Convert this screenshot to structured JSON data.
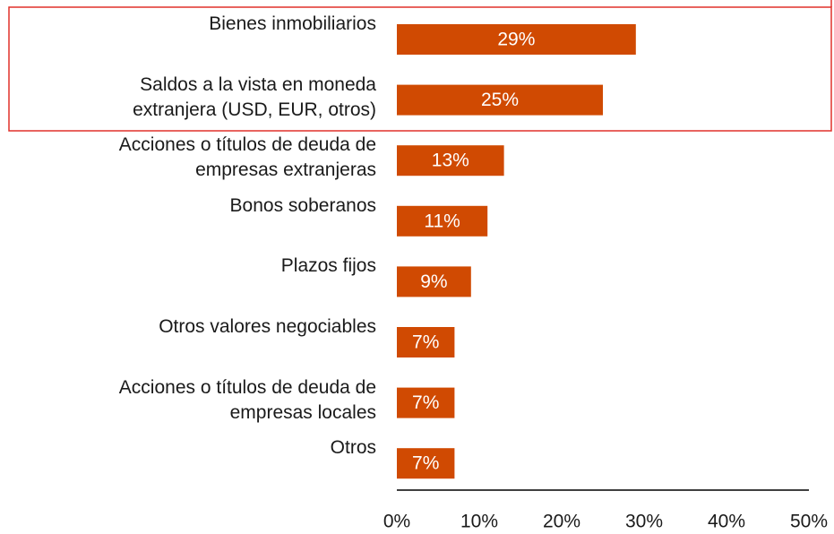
{
  "chart_data": {
    "type": "bar",
    "orientation": "horizontal",
    "categories": [
      "Bienes inmobiliarios",
      "Saldos a la vista en moneda\nextranjera (USD, EUR, otros)",
      "Acciones o títulos de deuda de\nempresas extranjeras",
      "Bonos soberanos",
      "Plazos fijos",
      "Otros valores negociables",
      "Acciones o títulos de deuda de\nempresas locales",
      "Otros"
    ],
    "values": [
      29,
      25,
      13,
      11,
      9,
      7,
      7,
      7
    ],
    "value_labels": [
      "29%",
      "25%",
      "13%",
      "11%",
      "9%",
      "7%",
      "7%",
      "7%"
    ],
    "color": "#d04a02",
    "xlim": [
      0,
      50
    ],
    "xticks": [
      {
        "value": 0,
        "label": "0%"
      },
      {
        "value": 10,
        "label": "10%"
      },
      {
        "value": 20,
        "label": "20%"
      },
      {
        "value": 30,
        "label": "30%"
      },
      {
        "value": 40,
        "label": "40%"
      },
      {
        "value": 50,
        "label": "50%"
      }
    ],
    "grid": false
  }
}
